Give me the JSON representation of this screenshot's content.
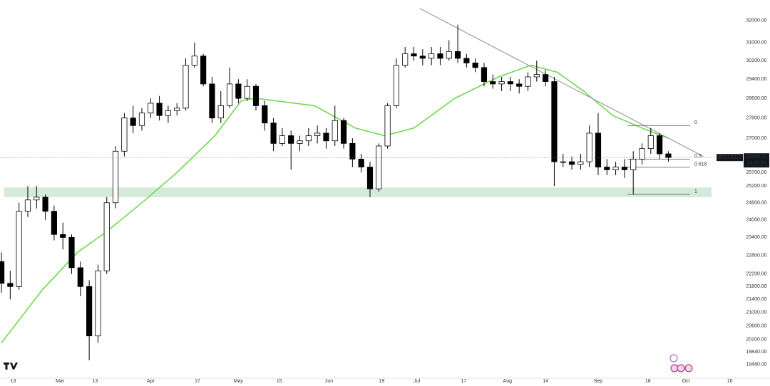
{
  "chart_data": {
    "type": "candlestick",
    "symbol": "BTCUSDT",
    "countdown": "19:09:36",
    "log_scale": true,
    "grid": false,
    "up_color": "#ffffff",
    "down_color": "#000000",
    "wick_color": "#000000",
    "x": [
      40,
      43,
      46,
      49,
      52,
      55,
      58,
      61,
      64,
      67,
      70,
      73,
      76,
      79,
      82,
      85,
      88,
      91,
      94,
      97,
      100,
      103,
      106,
      109,
      112,
      115,
      118,
      121,
      124,
      127,
      130,
      133,
      136,
      139,
      142,
      145,
      148,
      151,
      154,
      157,
      160,
      163,
      166,
      169,
      172,
      175,
      178,
      181,
      184,
      187,
      190,
      193,
      196,
      199,
      202,
      205,
      208,
      211,
      214,
      217,
      220,
      223,
      226,
      229,
      232,
      235,
      238,
      241,
      244,
      247,
      250,
      253,
      256,
      259,
      262,
      265,
      268
    ],
    "open": [
      22600,
      21900,
      21800,
      24300,
      24700,
      24800,
      24300,
      23500,
      23400,
      22400,
      21800,
      20300,
      22300,
      24600,
      26500,
      27800,
      27500,
      28000,
      28400,
      27900,
      28100,
      28200,
      30000,
      30400,
      29200,
      27800,
      28300,
      29200,
      28600,
      29100,
      28300,
      27600,
      26800,
      27100,
      26800,
      26900,
      27100,
      27200,
      26900,
      27700,
      26800,
      26200,
      25900,
      25100,
      26700,
      28300,
      30000,
      30500,
      30400,
      30300,
      30500,
      30300,
      30600,
      30300,
      30100,
      29900,
      29300,
      29200,
      29300,
      29200,
      29100,
      29500,
      29600,
      29300,
      26100,
      26100,
      26000,
      26100,
      27200,
      25900,
      25800,
      25900,
      25800,
      26200,
      26600,
      27100,
      26400
    ],
    "high": [
      22900,
      22300,
      24600,
      25200,
      25200,
      24900,
      24500,
      23900,
      23500,
      22600,
      22000,
      22500,
      24800,
      26700,
      28000,
      28300,
      28200,
      28600,
      28700,
      28300,
      28400,
      30300,
      31000,
      30500,
      29500,
      28900,
      29900,
      29400,
      29400,
      29200,
      28500,
      27800,
      27400,
      27300,
      27100,
      27400,
      27500,
      27400,
      28300,
      27800,
      27000,
      26400,
      26100,
      26800,
      28400,
      30300,
      30800,
      30800,
      30700,
      30800,
      30800,
      31100,
      31800,
      30500,
      30300,
      30100,
      29600,
      29500,
      29500,
      29400,
      29700,
      30200,
      29800,
      29500,
      26400,
      26300,
      26400,
      27500,
      28000,
      26200,
      26100,
      26200,
      26500,
      26800,
      27400,
      27200,
      26500
    ],
    "low": [
      21600,
      21400,
      21700,
      24100,
      24400,
      24000,
      23300,
      23000,
      22200,
      21500,
      19600,
      20100,
      22200,
      24400,
      26300,
      27200,
      27300,
      27800,
      27700,
      27600,
      27900,
      28100,
      29900,
      29100,
      27600,
      27600,
      28200,
      28400,
      28500,
      28100,
      27300,
      26500,
      26700,
      25800,
      26500,
      26700,
      26800,
      26600,
      26700,
      26600,
      25900,
      25700,
      24800,
      25000,
      26600,
      28200,
      29900,
      30200,
      30000,
      30000,
      30000,
      30200,
      30100,
      29900,
      29700,
      29100,
      29000,
      28900,
      28900,
      28800,
      28900,
      29300,
      29100,
      25200,
      25900,
      25800,
      25800,
      25900,
      25600,
      25600,
      25600,
      25500,
      24900,
      26000,
      26400,
      26200,
      26100
    ],
    "close": [
      21900,
      21800,
      24300,
      24700,
      24800,
      24300,
      23500,
      23400,
      22400,
      21800,
      20300,
      22300,
      24600,
      26500,
      27800,
      27500,
      28000,
      28400,
      27900,
      28100,
      28200,
      30000,
      30400,
      29200,
      27800,
      28300,
      29200,
      28600,
      29100,
      28300,
      27600,
      26800,
      27100,
      26800,
      26900,
      27100,
      27200,
      26900,
      27700,
      26800,
      26200,
      25900,
      25100,
      26700,
      28300,
      30000,
      30500,
      30400,
      30300,
      30500,
      30300,
      30600,
      30300,
      30100,
      29900,
      29300,
      29200,
      29300,
      29200,
      29100,
      29500,
      29600,
      29300,
      26100,
      26100,
      26000,
      26100,
      27200,
      25900,
      25800,
      25900,
      25800,
      26200,
      26600,
      27100,
      26400,
      26259.21
    ],
    "ma": {
      "color": "#6fd94a",
      "x": [
        40,
        54,
        66,
        76,
        88,
        100,
        113,
        122,
        127,
        147,
        161,
        171,
        181,
        195,
        210,
        221,
        230,
        239,
        249,
        259,
        268
      ],
      "values": [
        20100,
        21700,
        22900,
        23600,
        24600,
        25700,
        27100,
        28500,
        28600,
        28300,
        27400,
        27100,
        27400,
        28600,
        29500,
        30000,
        29700,
        28900,
        27900,
        27400,
        27000
      ]
    },
    "trendline": {
      "color": "#9e9e9e",
      "x": [
        183,
        280
      ],
      "values": [
        32560,
        26300
      ]
    },
    "support_zone": {
      "color": "#cfe6d3",
      "values": [
        24800,
        25150
      ]
    },
    "fib_levels": [
      {
        "level": 0,
        "price": 27500
      },
      {
        "level": 0.5,
        "price": 26200
      },
      {
        "level": 0.618,
        "price": 25893
      },
      {
        "level": 1,
        "price": 24900
      }
    ],
    "xlim": [
      39.5,
      293
    ],
    "ylim": [
      19120,
      32960
    ],
    "xticks": [
      {
        "value": 44,
        "label": "13"
      },
      {
        "value": 60,
        "label": "Mar"
      },
      {
        "value": 72,
        "label": "13"
      },
      {
        "value": 91,
        "label": "Apr"
      },
      {
        "value": 107,
        "label": "17"
      },
      {
        "value": 121,
        "label": "May"
      },
      {
        "value": 135,
        "label": "15"
      },
      {
        "value": 152,
        "label": "Jun"
      },
      {
        "value": 170,
        "label": "19"
      },
      {
        "value": 182,
        "label": "Jul"
      },
      {
        "value": 198,
        "label": "17"
      },
      {
        "value": 213,
        "label": "Aug"
      },
      {
        "value": 226,
        "label": "14"
      },
      {
        "value": 244,
        "label": "Sep"
      },
      {
        "value": 261,
        "label": "18"
      },
      {
        "value": 274,
        "label": "Oct"
      },
      {
        "value": 289,
        "label": "16"
      }
    ],
    "yticks": [
      {
        "value": 32000,
        "label": "32000.00"
      },
      {
        "value": 31000,
        "label": "31000.00"
      },
      {
        "value": 30200,
        "label": "30200.00"
      },
      {
        "value": 29400,
        "label": "29400.00"
      },
      {
        "value": 28600,
        "label": "28600.00"
      },
      {
        "value": 27800,
        "label": "27800.00"
      },
      {
        "value": 27000,
        "label": "27000.00"
      },
      {
        "value": 25700,
        "label": "25700.00"
      },
      {
        "value": 25200,
        "label": "25200.00"
      },
      {
        "value": 24600,
        "label": "24600.00"
      },
      {
        "value": 24000,
        "label": "24000.00"
      },
      {
        "value": 23400,
        "label": "23400.00"
      },
      {
        "value": 22800,
        "label": "22800.00"
      },
      {
        "value": 22200,
        "label": "22200.00"
      },
      {
        "value": 21800,
        "label": "21800.00"
      },
      {
        "value": 21400,
        "label": "21400.00"
      },
      {
        "value": 21000,
        "label": "21000.00"
      },
      {
        "value": 20600,
        "label": "20600.00"
      },
      {
        "value": 20200,
        "label": "20200.00"
      },
      {
        "value": 19840,
        "label": "19840.00"
      },
      {
        "value": 19480,
        "label": "19480.00"
      }
    ]
  }
}
